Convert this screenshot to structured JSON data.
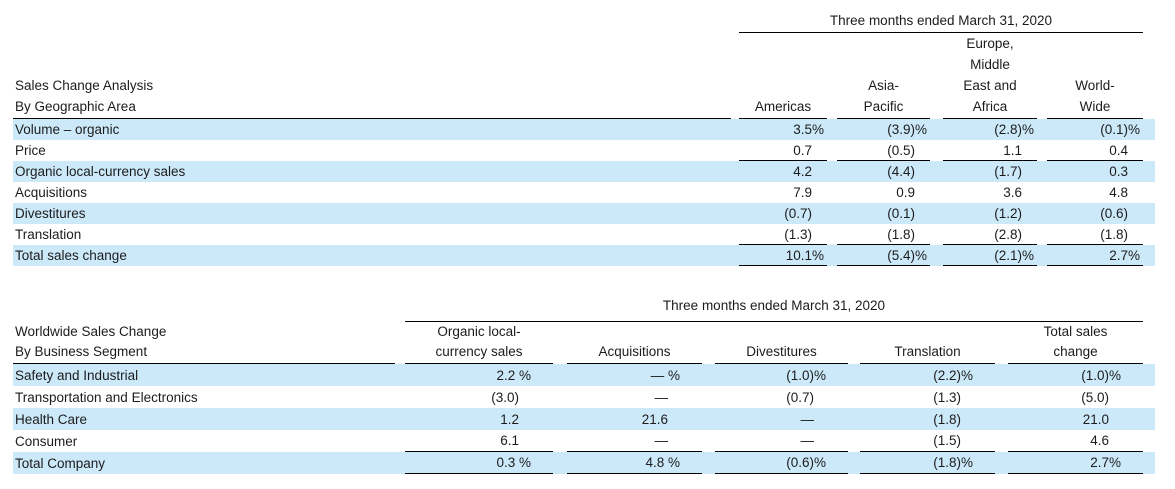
{
  "colors": {
    "highlight": "#cce9fa",
    "line": "#000000",
    "text": "#1c1c1c",
    "background": "#ffffff"
  },
  "table1": {
    "period_header": "Three months ended March 31, 2020",
    "title_line1": "Sales Change Analysis",
    "title_line2": "By Geographic Area",
    "col_headers": {
      "americas": [
        "Americas"
      ],
      "asia_pacific": [
        "Asia-",
        "Pacific"
      ],
      "emea": [
        "Europe,",
        "Middle",
        "East and",
        "Africa"
      ],
      "worldwide": [
        "World-",
        "Wide"
      ]
    },
    "rows": [
      {
        "label": "Volume – organic",
        "line_below": false,
        "cells": [
          [
            "3.5",
            "%"
          ],
          [
            "(3.9)",
            "%"
          ],
          [
            "(2.8)",
            "%"
          ],
          [
            "(0.1)",
            "%"
          ]
        ]
      },
      {
        "label": "Price",
        "line_below": true,
        "cells": [
          [
            "0.7",
            ""
          ],
          [
            "(0.5)",
            ""
          ],
          [
            "1.1",
            ""
          ],
          [
            "0.4",
            ""
          ]
        ]
      },
      {
        "label": "Organic local-currency sales",
        "line_below": false,
        "cells": [
          [
            "4.2",
            ""
          ],
          [
            "(4.4)",
            ""
          ],
          [
            "(1.7)",
            ""
          ],
          [
            "0.3",
            ""
          ]
        ]
      },
      {
        "label": "Acquisitions",
        "line_below": false,
        "cells": [
          [
            "7.9",
            ""
          ],
          [
            "0.9",
            ""
          ],
          [
            "3.6",
            ""
          ],
          [
            "4.8",
            ""
          ]
        ]
      },
      {
        "label": "Divestitures",
        "line_below": false,
        "cells": [
          [
            "(0.7)",
            ""
          ],
          [
            "(0.1)",
            ""
          ],
          [
            "(1.2)",
            ""
          ],
          [
            "(0.6)",
            ""
          ]
        ]
      },
      {
        "label": "Translation",
        "line_below": true,
        "cells": [
          [
            "(1.3)",
            ""
          ],
          [
            "(1.8)",
            ""
          ],
          [
            "(2.8)",
            ""
          ],
          [
            "(1.8)",
            ""
          ]
        ]
      },
      {
        "label": "Total sales change",
        "line_below": true,
        "cells": [
          [
            "10.1",
            "%"
          ],
          [
            "(5.4)",
            "%"
          ],
          [
            "(2.1)",
            "%"
          ],
          [
            "2.7",
            "%"
          ]
        ]
      }
    ]
  },
  "table2": {
    "period_header": "Three months ended March 31, 2020",
    "title_line1": "Worldwide Sales Change",
    "title_line2": "By Business Segment",
    "col_headers": {
      "organic": [
        "Organic local-",
        "currency sales"
      ],
      "acquisitions": [
        "Acquisitions"
      ],
      "divestitures": [
        "Divestitures"
      ],
      "translation": [
        "Translation"
      ],
      "total": [
        "Total sales",
        "change"
      ]
    },
    "rows": [
      {
        "label": "Safety and Industrial",
        "line_below": false,
        "cells": [
          [
            "2.2 ",
            "%"
          ],
          [
            "— ",
            "%"
          ],
          [
            "(1.0)",
            "%"
          ],
          [
            "(2.2)",
            "%"
          ],
          [
            "(1.0)",
            "%"
          ]
        ]
      },
      {
        "label": "Transportation and Electronics",
        "line_below": false,
        "cells": [
          [
            "(3.0)",
            ""
          ],
          [
            "—",
            ""
          ],
          [
            "(0.7)",
            ""
          ],
          [
            "(1.3)",
            ""
          ],
          [
            "(5.0)",
            ""
          ]
        ]
      },
      {
        "label": "Health Care",
        "line_below": false,
        "cells": [
          [
            "1.2",
            ""
          ],
          [
            "21.6",
            ""
          ],
          [
            "—",
            ""
          ],
          [
            "(1.8)",
            ""
          ],
          [
            "21.0",
            ""
          ]
        ]
      },
      {
        "label": "Consumer",
        "line_below": true,
        "cells": [
          [
            "6.1",
            ""
          ],
          [
            "—",
            ""
          ],
          [
            "—",
            ""
          ],
          [
            "(1.5)",
            ""
          ],
          [
            "4.6",
            ""
          ]
        ]
      },
      {
        "label": "Total Company",
        "line_below": true,
        "cells": [
          [
            "0.3 ",
            "%"
          ],
          [
            "4.8 ",
            "%"
          ],
          [
            "(0.6)",
            "%"
          ],
          [
            "(1.8)",
            "%"
          ],
          [
            "2.7",
            "%"
          ]
        ]
      }
    ]
  }
}
